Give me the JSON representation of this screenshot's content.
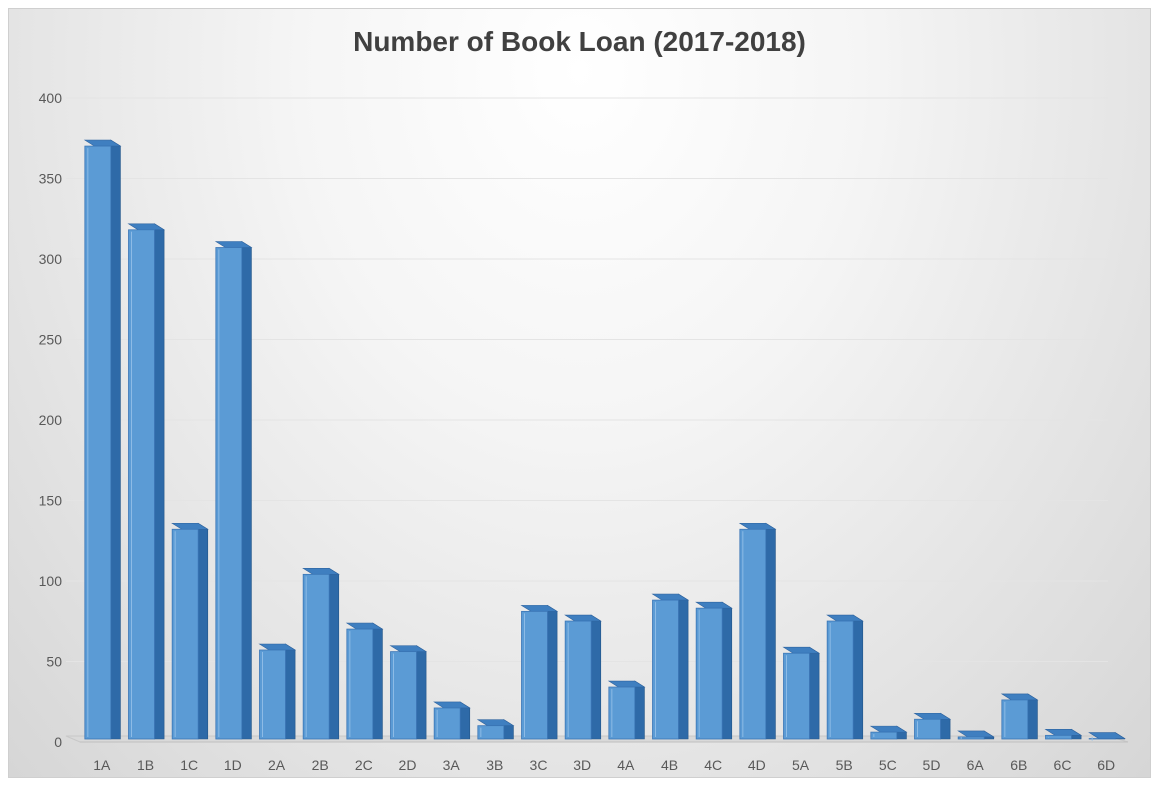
{
  "chart_data": {
    "type": "bar",
    "title": "Number of Book Loan (2017-2018)",
    "xlabel": "",
    "ylabel": "",
    "ylim": [
      0,
      400
    ],
    "yticks": [
      0,
      50,
      100,
      150,
      200,
      250,
      300,
      350,
      400
    ],
    "grid": true,
    "legend": "none",
    "categories": [
      "1A",
      "1B",
      "1C",
      "1D",
      "2A",
      "2B",
      "2C",
      "2D",
      "3A",
      "3B",
      "3C",
      "3D",
      "4A",
      "4B",
      "4C",
      "4D",
      "5A",
      "5B",
      "5C",
      "5D",
      "6A",
      "6B",
      "6C",
      "6D"
    ],
    "values": [
      372,
      320,
      134,
      309,
      59,
      106,
      72,
      58,
      23,
      12,
      83,
      77,
      36,
      90,
      85,
      134,
      57,
      77,
      8,
      16,
      5,
      28,
      6,
      4
    ],
    "bar_color": "#5b9bd5"
  }
}
